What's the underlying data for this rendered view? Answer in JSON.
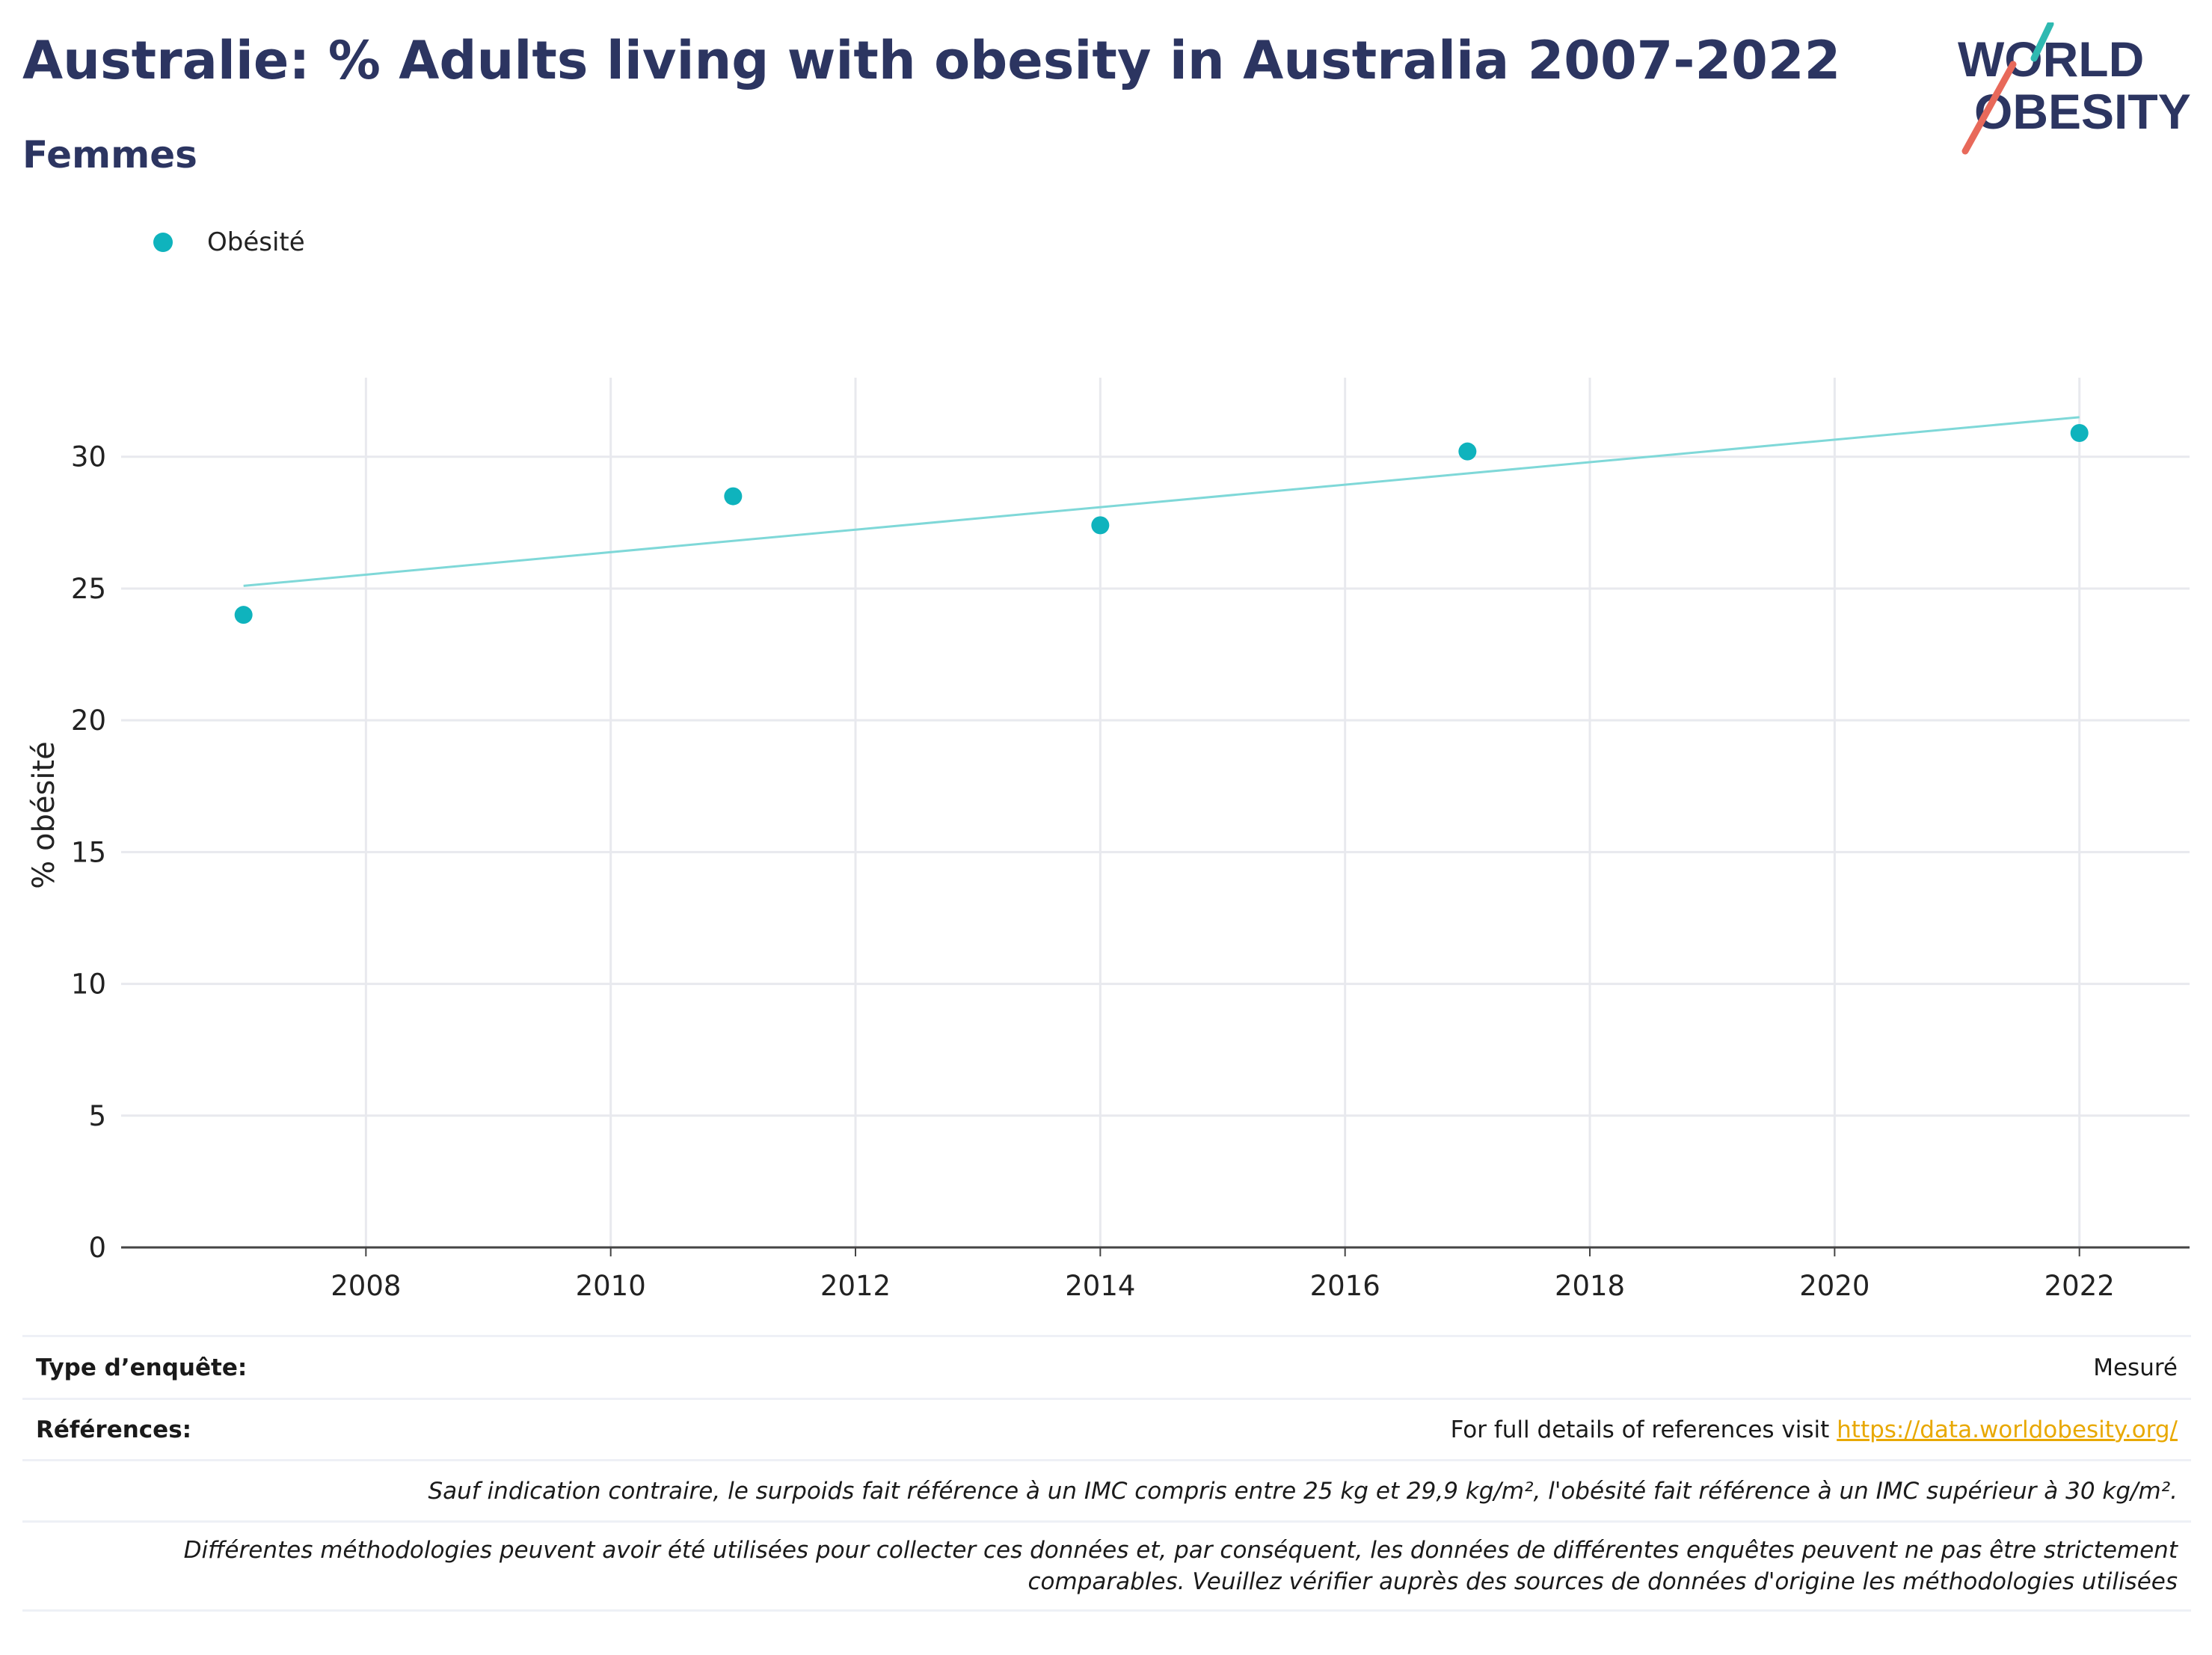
{
  "header": {
    "title": "Australie: % Adults living with obesity in Australia 2007-2022",
    "subtitle": "Femmes"
  },
  "logo": {
    "line1": "WORLD",
    "line2": "OBESITY",
    "colors": {
      "text": "#2c3561",
      "slash_teal": "#2fb9b1",
      "slash_red": "#e8695a"
    }
  },
  "legend": {
    "label": "Obésité",
    "color": "#0fb3bd"
  },
  "chart_data": {
    "type": "scatter",
    "ylabel": "% obésité",
    "xlabel": "",
    "xlim": [
      2006.0,
      2022.9
    ],
    "ylim": [
      0,
      33
    ],
    "x_ticks": [
      2008,
      2010,
      2012,
      2014,
      2016,
      2018,
      2020,
      2022
    ],
    "y_ticks": [
      0,
      5,
      10,
      15,
      20,
      25,
      30
    ],
    "grid": true,
    "series": [
      {
        "name": "Obésité",
        "color": "#0fb3bd",
        "points": [
          {
            "x": 2007,
            "y": 24.0
          },
          {
            "x": 2011,
            "y": 28.5
          },
          {
            "x": 2014,
            "y": 27.4
          },
          {
            "x": 2017,
            "y": 30.2
          },
          {
            "x": 2022,
            "y": 30.9
          }
        ]
      }
    ],
    "trendline": {
      "color": "#7fd8d8",
      "points": [
        {
          "x": 2007,
          "y": 25.1
        },
        {
          "x": 2022,
          "y": 31.5
        }
      ]
    }
  },
  "info_table": {
    "survey_type": {
      "label": "Type d’enquête:",
      "value": "Mesuré"
    },
    "references": {
      "label": "Références:",
      "value_prefix": "For full details of references visit ",
      "link_text": "https://data.worldobesity.org/"
    },
    "note1": "Sauf indication contraire, le surpoids fait référence à un IMC compris entre 25 kg et 29,9 kg/m², l'obésité fait référence à un IMC supérieur à 30 kg/m².",
    "note2_line1": "Différentes méthodologies peuvent avoir été utilisées pour collecter ces données et, par conséquent, les données de différentes enquêtes peuvent ne pas être strictement",
    "note2_line2": "comparables. Veuillez vérifier auprès des sources de données d'origine les méthodologies utilisées"
  }
}
